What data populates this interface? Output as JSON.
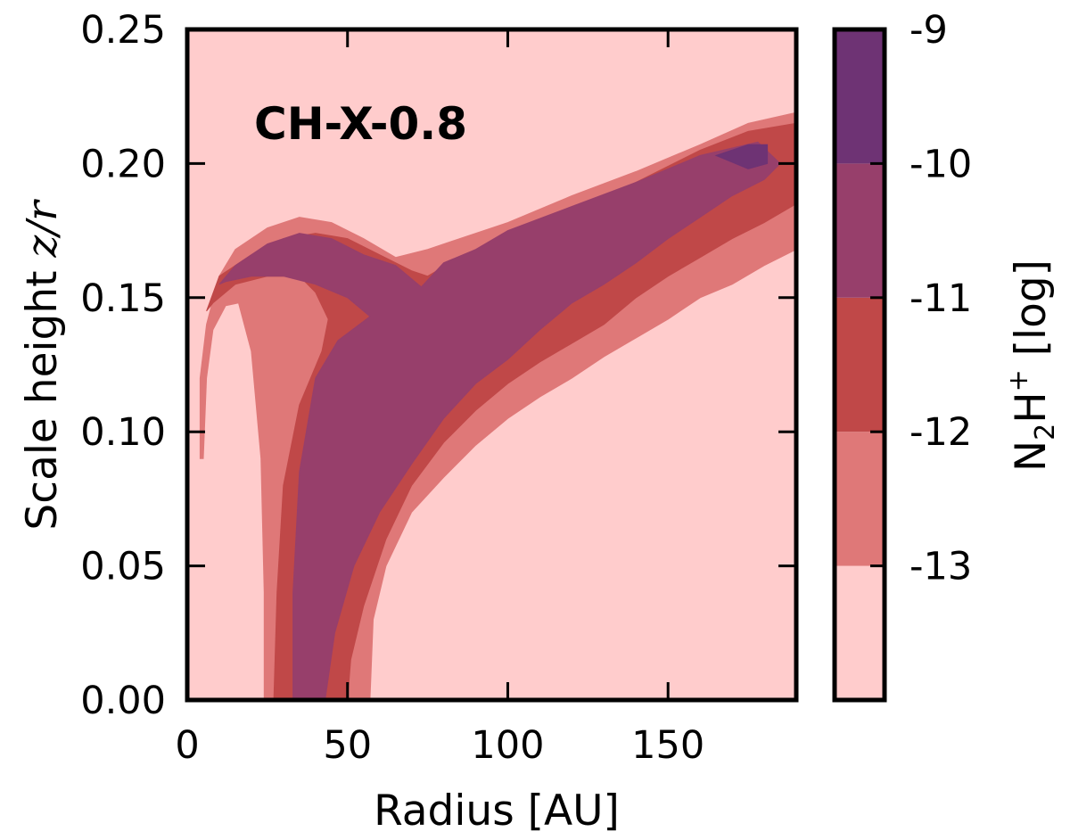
{
  "chart_data": {
    "type": "contour",
    "annotation": "CH-X-0.8",
    "xlabel": "Radius [AU]",
    "ylabel_prefix": "Scale height ",
    "ylabel_math": "z/r",
    "xlim": [
      0,
      190
    ],
    "ylim": [
      0.0,
      0.25
    ],
    "x_ticks": [
      0,
      50,
      100,
      150
    ],
    "x_tick_labels": [
      "0",
      "50",
      "100",
      "150"
    ],
    "y_ticks": [
      0.0,
      0.05,
      0.1,
      0.15,
      0.2,
      0.25
    ],
    "y_tick_labels": [
      "0.00",
      "0.05",
      "0.10",
      "0.15",
      "0.20",
      "0.25"
    ],
    "grid": false,
    "colorbar": {
      "label_main": "N",
      "label_sub": "2",
      "label_mid": "H",
      "label_sup": "+",
      "label_suffix": " [log]",
      "levels": [
        -14,
        -13,
        -12,
        -11,
        -10,
        -9
      ],
      "tick_labels": [
        "-9",
        "-10",
        "-11",
        "-12",
        "-13"
      ],
      "tick_values": [
        -9,
        -10,
        -11,
        -12,
        -13
      ],
      "colors": [
        "#ffcccc",
        "#df7878",
        "#c04848",
        "#973f6b",
        "#6e3374"
      ]
    },
    "regions": [
      {
        "level": "<-13",
        "color": "#ffcccc",
        "points": [
          [
            0,
            0
          ],
          [
            190,
            0
          ],
          [
            190,
            0.25
          ],
          [
            0,
            0.25
          ]
        ]
      },
      {
        "level": "-13 to -12",
        "color": "#df7878",
        "points": [
          [
            4,
            0.09
          ],
          [
            4,
            0.12
          ],
          [
            6,
            0.14
          ],
          [
            10,
            0.158
          ],
          [
            15,
            0.168
          ],
          [
            25,
            0.176
          ],
          [
            35,
            0.18
          ],
          [
            45,
            0.178
          ],
          [
            55,
            0.172
          ],
          [
            65,
            0.165
          ],
          [
            75,
            0.168
          ],
          [
            85,
            0.172
          ],
          [
            100,
            0.178
          ],
          [
            120,
            0.188
          ],
          [
            140,
            0.197
          ],
          [
            160,
            0.207
          ],
          [
            175,
            0.215
          ],
          [
            190,
            0.219
          ],
          [
            190,
            0.168
          ],
          [
            180,
            0.162
          ],
          [
            170,
            0.155
          ],
          [
            160,
            0.15
          ],
          [
            150,
            0.142
          ],
          [
            140,
            0.135
          ],
          [
            130,
            0.128
          ],
          [
            120,
            0.12
          ],
          [
            110,
            0.113
          ],
          [
            100,
            0.105
          ],
          [
            90,
            0.095
          ],
          [
            80,
            0.083
          ],
          [
            70,
            0.07
          ],
          [
            62,
            0.05
          ],
          [
            58,
            0.03
          ],
          [
            57,
            0
          ],
          [
            24,
            0
          ],
          [
            24,
            0.04
          ],
          [
            23,
            0.09
          ],
          [
            20,
            0.13
          ],
          [
            16,
            0.148
          ],
          [
            12,
            0.147
          ],
          [
            8,
            0.138
          ],
          [
            6,
            0.12
          ],
          [
            5,
            0.09
          ]
        ]
      },
      {
        "level": "-12 to -11",
        "color": "#c04848",
        "points": [
          [
            6,
            0.145
          ],
          [
            10,
            0.158
          ],
          [
            20,
            0.166
          ],
          [
            30,
            0.172
          ],
          [
            40,
            0.174
          ],
          [
            50,
            0.172
          ],
          [
            60,
            0.166
          ],
          [
            70,
            0.16
          ],
          [
            75,
            0.158
          ],
          [
            85,
            0.165
          ],
          [
            100,
            0.172
          ],
          [
            120,
            0.182
          ],
          [
            140,
            0.193
          ],
          [
            160,
            0.205
          ],
          [
            175,
            0.212
          ],
          [
            190,
            0.215
          ],
          [
            190,
            0.185
          ],
          [
            180,
            0.178
          ],
          [
            170,
            0.172
          ],
          [
            160,
            0.165
          ],
          [
            150,
            0.158
          ],
          [
            140,
            0.15
          ],
          [
            130,
            0.14
          ],
          [
            120,
            0.133
          ],
          [
            110,
            0.126
          ],
          [
            100,
            0.118
          ],
          [
            90,
            0.108
          ],
          [
            80,
            0.096
          ],
          [
            70,
            0.08
          ],
          [
            62,
            0.06
          ],
          [
            55,
            0.035
          ],
          [
            51,
            0.015
          ],
          [
            50,
            0
          ],
          [
            27,
            0
          ],
          [
            28,
            0.04
          ],
          [
            30,
            0.08
          ],
          [
            35,
            0.11
          ],
          [
            42,
            0.13
          ],
          [
            44,
            0.142
          ],
          [
            40,
            0.152
          ],
          [
            35,
            0.158
          ],
          [
            25,
            0.158
          ],
          [
            15,
            0.155
          ],
          [
            8,
            0.148
          ]
        ]
      },
      {
        "level": "-11 to -10",
        "color": "#973f6b",
        "points": [
          [
            10,
            0.155
          ],
          [
            15,
            0.162
          ],
          [
            25,
            0.17
          ],
          [
            35,
            0.174
          ],
          [
            45,
            0.172
          ],
          [
            55,
            0.166
          ],
          [
            65,
            0.162
          ],
          [
            73,
            0.154
          ],
          [
            80,
            0.163
          ],
          [
            90,
            0.168
          ],
          [
            100,
            0.175
          ],
          [
            120,
            0.184
          ],
          [
            140,
            0.193
          ],
          [
            160,
            0.203
          ],
          [
            178,
            0.208
          ],
          [
            185,
            0.2
          ],
          [
            180,
            0.194
          ],
          [
            170,
            0.188
          ],
          [
            160,
            0.18
          ],
          [
            150,
            0.172
          ],
          [
            140,
            0.163
          ],
          [
            130,
            0.155
          ],
          [
            120,
            0.148
          ],
          [
            110,
            0.138
          ],
          [
            100,
            0.127
          ],
          [
            90,
            0.118
          ],
          [
            80,
            0.105
          ],
          [
            70,
            0.088
          ],
          [
            60,
            0.07
          ],
          [
            52,
            0.05
          ],
          [
            46,
            0.025
          ],
          [
            43,
            0
          ],
          [
            33,
            0
          ],
          [
            33,
            0.04
          ],
          [
            35,
            0.085
          ],
          [
            40,
            0.12
          ],
          [
            47,
            0.134
          ],
          [
            57,
            0.143
          ],
          [
            50,
            0.15
          ],
          [
            40,
            0.155
          ],
          [
            30,
            0.158
          ],
          [
            20,
            0.158
          ],
          [
            12,
            0.156
          ]
        ]
      },
      {
        "level": "-10 to -9",
        "color": "#6e3374",
        "points": [
          [
            165,
            0.203
          ],
          [
            175,
            0.207
          ],
          [
            181,
            0.207
          ],
          [
            181,
            0.2
          ],
          [
            175,
            0.198
          ]
        ]
      }
    ]
  }
}
